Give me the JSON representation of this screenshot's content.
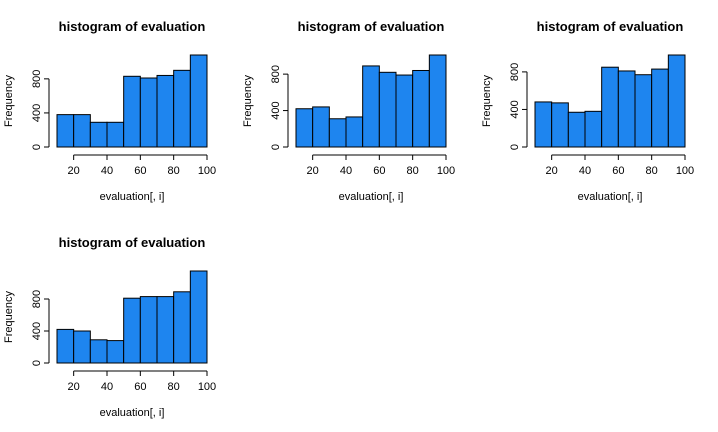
{
  "chart_data": [
    {
      "type": "bar",
      "title": "histogram of evaluation",
      "xlabel": "evaluation[, i]",
      "ylabel": "Frequency",
      "bins": [
        [
          10,
          20
        ],
        [
          20,
          30
        ],
        [
          30,
          40
        ],
        [
          40,
          50
        ],
        [
          50,
          60
        ],
        [
          60,
          70
        ],
        [
          70,
          80
        ],
        [
          80,
          90
        ],
        [
          90,
          100
        ]
      ],
      "values": [
        380,
        380,
        290,
        290,
        830,
        810,
        840,
        900,
        1080
      ],
      "xlim": [
        10,
        100
      ],
      "ylim": [
        0,
        1080
      ],
      "xticks": [
        20,
        40,
        60,
        80,
        100
      ],
      "yticks": [
        0,
        400,
        800
      ],
      "bar_color": "#1E85EF",
      "edge_color": "#000000"
    },
    {
      "type": "bar",
      "title": "histogram of evaluation",
      "xlabel": "evaluation[, i]",
      "ylabel": "Frequency",
      "bins": [
        [
          10,
          20
        ],
        [
          20,
          30
        ],
        [
          30,
          40
        ],
        [
          40,
          50
        ],
        [
          50,
          60
        ],
        [
          60,
          70
        ],
        [
          70,
          80
        ],
        [
          80,
          90
        ],
        [
          90,
          100
        ]
      ],
      "values": [
        420,
        440,
        310,
        330,
        890,
        820,
        790,
        840,
        1010
      ],
      "xlim": [
        10,
        100
      ],
      "ylim": [
        0,
        1010
      ],
      "xticks": [
        20,
        40,
        60,
        80,
        100
      ],
      "yticks": [
        0,
        400,
        800
      ],
      "bar_color": "#1E85EF",
      "edge_color": "#000000"
    },
    {
      "type": "bar",
      "title": "histogram of evaluation",
      "xlabel": "evaluation[, i]",
      "ylabel": "Frequency",
      "bins": [
        [
          10,
          20
        ],
        [
          20,
          30
        ],
        [
          30,
          40
        ],
        [
          40,
          50
        ],
        [
          50,
          60
        ],
        [
          60,
          70
        ],
        [
          70,
          80
        ],
        [
          80,
          90
        ],
        [
          90,
          100
        ]
      ],
      "values": [
        480,
        470,
        370,
        380,
        850,
        810,
        770,
        830,
        980
      ],
      "xlim": [
        10,
        100
      ],
      "ylim": [
        0,
        980
      ],
      "xticks": [
        20,
        40,
        60,
        80,
        100
      ],
      "yticks": [
        0,
        400,
        800
      ],
      "bar_color": "#1E85EF",
      "edge_color": "#000000"
    },
    {
      "type": "bar",
      "title": "histogram of evaluation",
      "xlabel": "evaluation[, i]",
      "ylabel": "Frequency",
      "bins": [
        [
          10,
          20
        ],
        [
          20,
          30
        ],
        [
          30,
          40
        ],
        [
          40,
          50
        ],
        [
          50,
          60
        ],
        [
          60,
          70
        ],
        [
          70,
          80
        ],
        [
          80,
          90
        ],
        [
          90,
          100
        ]
      ],
      "values": [
        420,
        400,
        290,
        280,
        810,
        830,
        830,
        890,
        1150
      ],
      "xlim": [
        10,
        100
      ],
      "ylim": [
        0,
        1150
      ],
      "xticks": [
        20,
        40,
        60,
        80,
        100
      ],
      "yticks": [
        0,
        400,
        800
      ],
      "bar_color": "#1E85EF",
      "edge_color": "#000000"
    }
  ]
}
